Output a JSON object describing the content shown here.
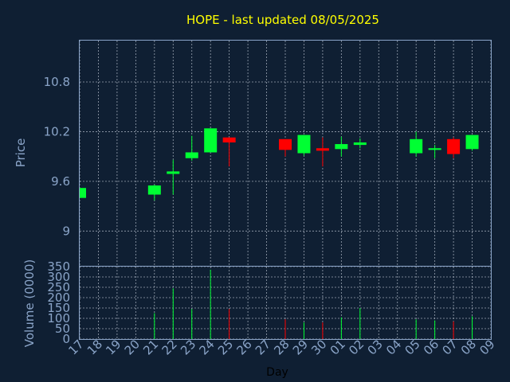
{
  "chart_data": {
    "type": "candlestick",
    "title": "HOPE - last updated 08/05/2025",
    "xlabel": "Day",
    "ylabel_price": "Price",
    "ylabel_volume": "Volume (0000)",
    "price_ylim": [
      8.58,
      11.3
    ],
    "price_ticks": [
      "10.8",
      "10.2",
      "9.6",
      "9"
    ],
    "volume_ylim": [
      0,
      350
    ],
    "volume_ticks": [
      "350",
      "300",
      "250",
      "200",
      "150",
      "100",
      "50",
      "0"
    ],
    "x_labels": [
      "17",
      "18",
      "19",
      "20",
      "21",
      "22",
      "23",
      "24",
      "25",
      "26",
      "27",
      "28",
      "29",
      "30",
      "01",
      "02",
      "03",
      "04",
      "05",
      "06",
      "07",
      "08",
      "09"
    ],
    "grid": true,
    "colors": {
      "up": "#00ff33",
      "down": "#ff0000",
      "title": "#ffff00",
      "axis": "#8aa4c8",
      "background": "#0f1f33"
    },
    "candles": [
      {
        "x": "17",
        "open": 9.4,
        "close": 9.52,
        "high": 9.52,
        "low": 9.4,
        "volume": 0
      },
      {
        "x": "21",
        "open": 9.44,
        "close": 9.55,
        "high": 9.56,
        "low": 9.37,
        "volume": 125
      },
      {
        "x": "22",
        "open": 9.69,
        "close": 9.72,
        "high": 9.86,
        "low": 9.44,
        "volume": 245
      },
      {
        "x": "23",
        "open": 9.88,
        "close": 9.95,
        "high": 10.15,
        "low": 9.85,
        "volume": 145
      },
      {
        "x": "24",
        "open": 9.95,
        "close": 10.24,
        "high": 10.24,
        "low": 9.95,
        "volume": 335
      },
      {
        "x": "25",
        "open": 10.13,
        "close": 10.07,
        "high": 10.13,
        "low": 9.78,
        "volume": 145
      },
      {
        "x": "28",
        "open": 10.11,
        "close": 9.98,
        "high": 10.11,
        "low": 9.9,
        "volume": 95
      },
      {
        "x": "29",
        "open": 9.94,
        "close": 10.16,
        "high": 10.16,
        "low": 9.91,
        "volume": 80
      },
      {
        "x": "30",
        "open": 10.0,
        "close": 9.97,
        "high": 10.13,
        "low": 9.78,
        "volume": 80
      },
      {
        "x": "01",
        "open": 9.99,
        "close": 10.05,
        "high": 10.14,
        "low": 9.9,
        "volume": 105
      },
      {
        "x": "02",
        "open": 10.04,
        "close": 10.07,
        "high": 10.12,
        "low": 10.0,
        "volume": 150
      },
      {
        "x": "05",
        "open": 9.94,
        "close": 10.11,
        "high": 10.2,
        "low": 9.9,
        "volume": 95
      },
      {
        "x": "06",
        "open": 9.98,
        "close": 10.0,
        "high": 10.04,
        "low": 9.88,
        "volume": 90
      },
      {
        "x": "07",
        "open": 10.11,
        "close": 9.93,
        "high": 10.13,
        "low": 9.88,
        "volume": 85
      },
      {
        "x": "08",
        "open": 9.99,
        "close": 10.16,
        "high": 10.16,
        "low": 9.97,
        "volume": 110
      }
    ]
  }
}
